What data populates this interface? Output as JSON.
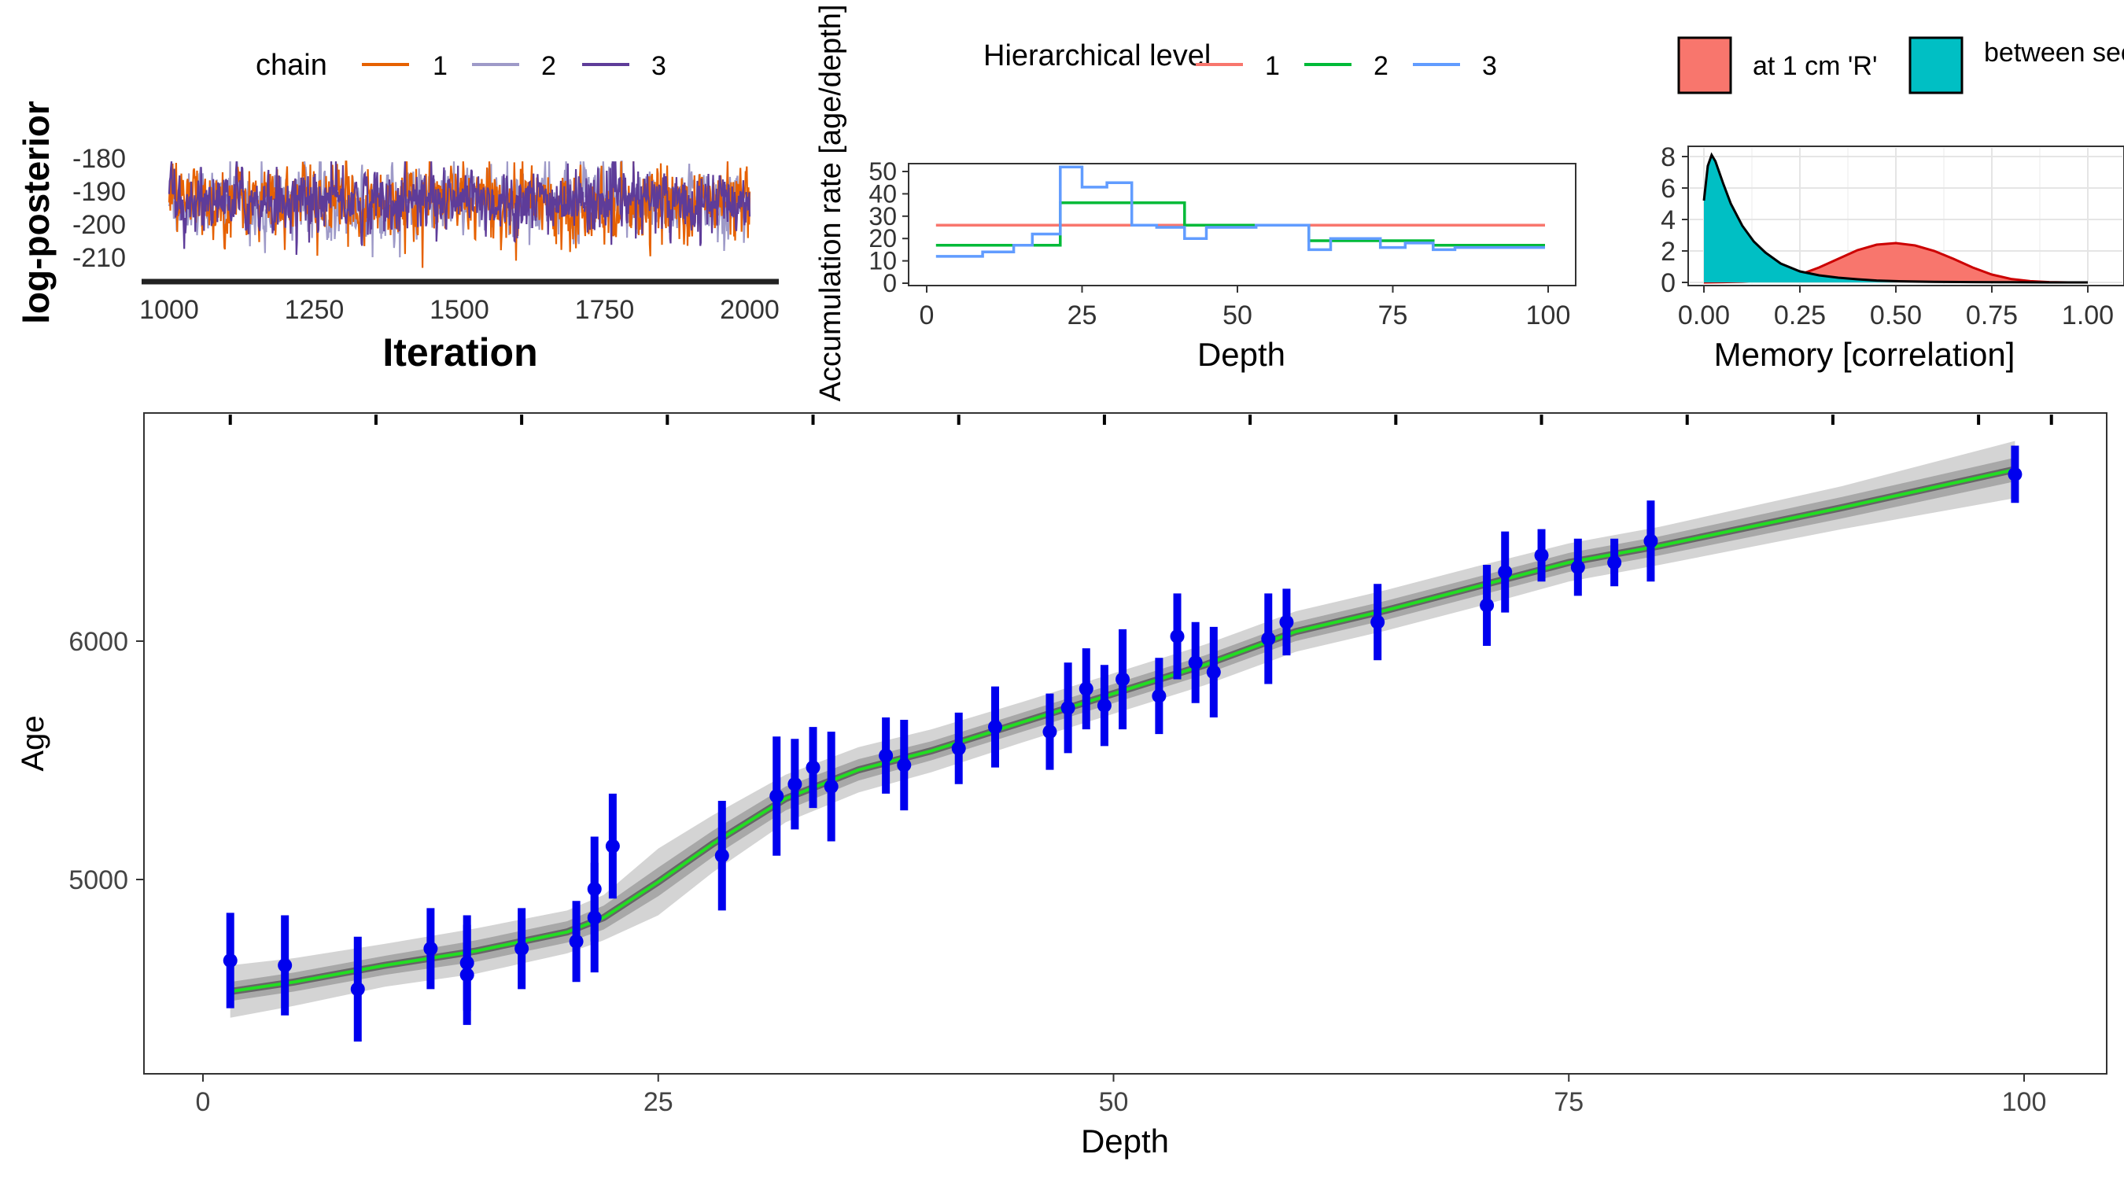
{
  "chart_data": [
    {
      "id": "trace",
      "type": "line",
      "title": "",
      "xlabel": "Iteration",
      "ylabel": "log-posterior",
      "xlim": [
        1000,
        2000
      ],
      "ylim": [
        -216,
        -175
      ],
      "xticks": [
        1000,
        1250,
        1500,
        1750,
        2000
      ],
      "yticks": [
        -180,
        -190,
        -200,
        -210
      ],
      "legend": {
        "title": "chain",
        "position": "top"
      },
      "series": [
        {
          "name": "1",
          "color": "#E66101",
          "mean": -193,
          "spread": 5
        },
        {
          "name": "2",
          "color": "#9E9AC8",
          "mean": -193,
          "spread": 5
        },
        {
          "name": "3",
          "color": "#5E3C99",
          "mean": -193,
          "spread": 4.5
        }
      ],
      "samples_per_chain": 1000
    },
    {
      "id": "accumulation",
      "type": "line",
      "title": "",
      "xlabel": "Depth",
      "ylabel": "Accumulation rate [age/depth]",
      "xlim": [
        -2,
        104
      ],
      "ylim": [
        -2,
        55
      ],
      "xticks": [
        0,
        25,
        50,
        75,
        100
      ],
      "yticks": [
        0,
        10,
        20,
        30,
        40,
        50
      ],
      "legend": {
        "title": "Hierarchical level",
        "position": "top"
      },
      "series": [
        {
          "name": "1",
          "color": "#F8766D",
          "step_x": [
            1.5,
            99.5
          ],
          "step_y": [
            26
          ]
        },
        {
          "name": "2",
          "color": "#00BA38",
          "step_x": [
            1.5,
            21.5,
            41.5,
            61.5,
            81.5,
            99.5
          ],
          "step_y": [
            17,
            36,
            26,
            19,
            17
          ]
        },
        {
          "name": "3",
          "color": "#619CFF",
          "step_x": [
            1.5,
            9,
            14,
            17,
            21.5,
            25,
            29,
            33,
            37,
            41.5,
            45,
            49,
            53,
            57,
            61.5,
            65,
            69,
            73,
            77,
            81.5,
            85,
            89,
            93,
            99.5
          ],
          "step_y": [
            12,
            14,
            17,
            22,
            52,
            43,
            45,
            26,
            25,
            20,
            25,
            25,
            26,
            26,
            15,
            20,
            20,
            16,
            18,
            15,
            16,
            16,
            16
          ]
        }
      ]
    },
    {
      "id": "memory",
      "type": "area",
      "title": "",
      "xlabel": "Memory [correlation]",
      "ylabel": "",
      "xlim": [
        -0.04,
        1.04
      ],
      "ylim": [
        -0.3,
        8.6
      ],
      "xticks": [
        "0.00",
        "0.25",
        "0.50",
        "0.75",
        "1.00"
      ],
      "yticks": [
        0,
        2,
        4,
        6,
        8
      ],
      "grid": true,
      "legend": {
        "position": "top"
      },
      "series": [
        {
          "name": "at 1 cm 'R'",
          "color": "#F8766D",
          "x": [
            0,
            0.05,
            0.1,
            0.15,
            0.2,
            0.25,
            0.3,
            0.35,
            0.4,
            0.45,
            0.5,
            0.55,
            0.6,
            0.65,
            0.7,
            0.75,
            0.8,
            0.85,
            0.9,
            0.95,
            1.0
          ],
          "y": [
            0,
            0.02,
            0.05,
            0.12,
            0.25,
            0.5,
            0.95,
            1.5,
            2.05,
            2.4,
            2.5,
            2.35,
            2.0,
            1.5,
            0.95,
            0.5,
            0.22,
            0.08,
            0.02,
            0,
            0
          ]
        },
        {
          "name": "between sections 'w'",
          "color": "#00BFC4",
          "x": [
            0,
            0.01,
            0.02,
            0.03,
            0.05,
            0.07,
            0.1,
            0.13,
            0.16,
            0.2,
            0.25,
            0.3,
            0.35,
            0.4,
            0.45,
            0.5,
            0.6,
            0.7,
            0.8,
            0.9,
            1.0
          ],
          "y": [
            5.2,
            7.4,
            8.1,
            7.7,
            6.3,
            5.0,
            3.6,
            2.6,
            1.9,
            1.2,
            0.7,
            0.45,
            0.3,
            0.2,
            0.12,
            0.08,
            0.04,
            0.02,
            0.01,
            0,
            0
          ]
        }
      ]
    },
    {
      "id": "age-depth",
      "type": "line",
      "title": "",
      "xlabel": "Depth",
      "ylabel": "Age",
      "xlim": [
        -5,
        105
      ],
      "ylim": [
        4220,
        6900
      ],
      "xticks": [
        0,
        25,
        50,
        75,
        100
      ],
      "yticks": [
        5000,
        6000
      ],
      "model_line": {
        "color": "#22DD22",
        "depth": [
          1.5,
          5,
          10,
          15,
          20,
          22,
          25,
          28,
          32,
          36,
          40,
          45,
          50,
          55,
          60,
          65,
          70,
          75,
          80,
          90,
          99.5
        ],
        "age": [
          4530,
          4570,
          4640,
          4700,
          4780,
          4840,
          4990,
          5150,
          5340,
          5460,
          5540,
          5660,
          5780,
          5900,
          6040,
          6130,
          6230,
          6330,
          6400,
          6560,
          6720
        ],
        "inner_halfwidth": [
          40,
          40,
          40,
          45,
          45,
          50,
          60,
          55,
          50,
          45,
          40,
          40,
          40,
          40,
          40,
          40,
          40,
          40,
          40,
          45,
          50
        ],
        "outer_halfwidth": [
          110,
          100,
          90,
          95,
          90,
          95,
          140,
          120,
          100,
          95,
          90,
          85,
          85,
          85,
          85,
          85,
          85,
          80,
          80,
          90,
          120
        ]
      },
      "dates": {
        "color": "#0000EE",
        "depth": [
          1.5,
          4.5,
          8.5,
          12.5,
          14.5,
          14.5,
          17.5,
          20.5,
          21.5,
          21.5,
          22.5,
          28.5,
          31.5,
          32.5,
          33.5,
          34.5,
          37.5,
          38.5,
          41.5,
          43.5,
          46.5,
          47.5,
          48.5,
          49.5,
          50.5,
          52.5,
          53.5,
          54.5,
          55.5,
          58.5,
          59.5,
          64.5,
          70.5,
          71.5,
          73.5,
          75.5,
          77.5,
          79.5,
          99.5
        ],
        "age": [
          4660,
          4640,
          4540,
          4710,
          4650,
          4600,
          4710,
          4740,
          4840,
          4960,
          5140,
          5100,
          5350,
          5400,
          5470,
          5390,
          5520,
          5480,
          5550,
          5640,
          5620,
          5720,
          5800,
          5730,
          5840,
          5770,
          6020,
          5910,
          5870,
          6010,
          6080,
          6080,
          6150,
          6290,
          6360,
          6310,
          6330,
          6420,
          6700
        ],
        "err": [
          200,
          210,
          220,
          170,
          200,
          210,
          170,
          170,
          230,
          220,
          220,
          230,
          250,
          190,
          170,
          230,
          160,
          190,
          150,
          170,
          160,
          190,
          170,
          170,
          210,
          160,
          180,
          170,
          190,
          190,
          140,
          160,
          170,
          170,
          110,
          120,
          100,
          170,
          120
        ]
      }
    }
  ]
}
